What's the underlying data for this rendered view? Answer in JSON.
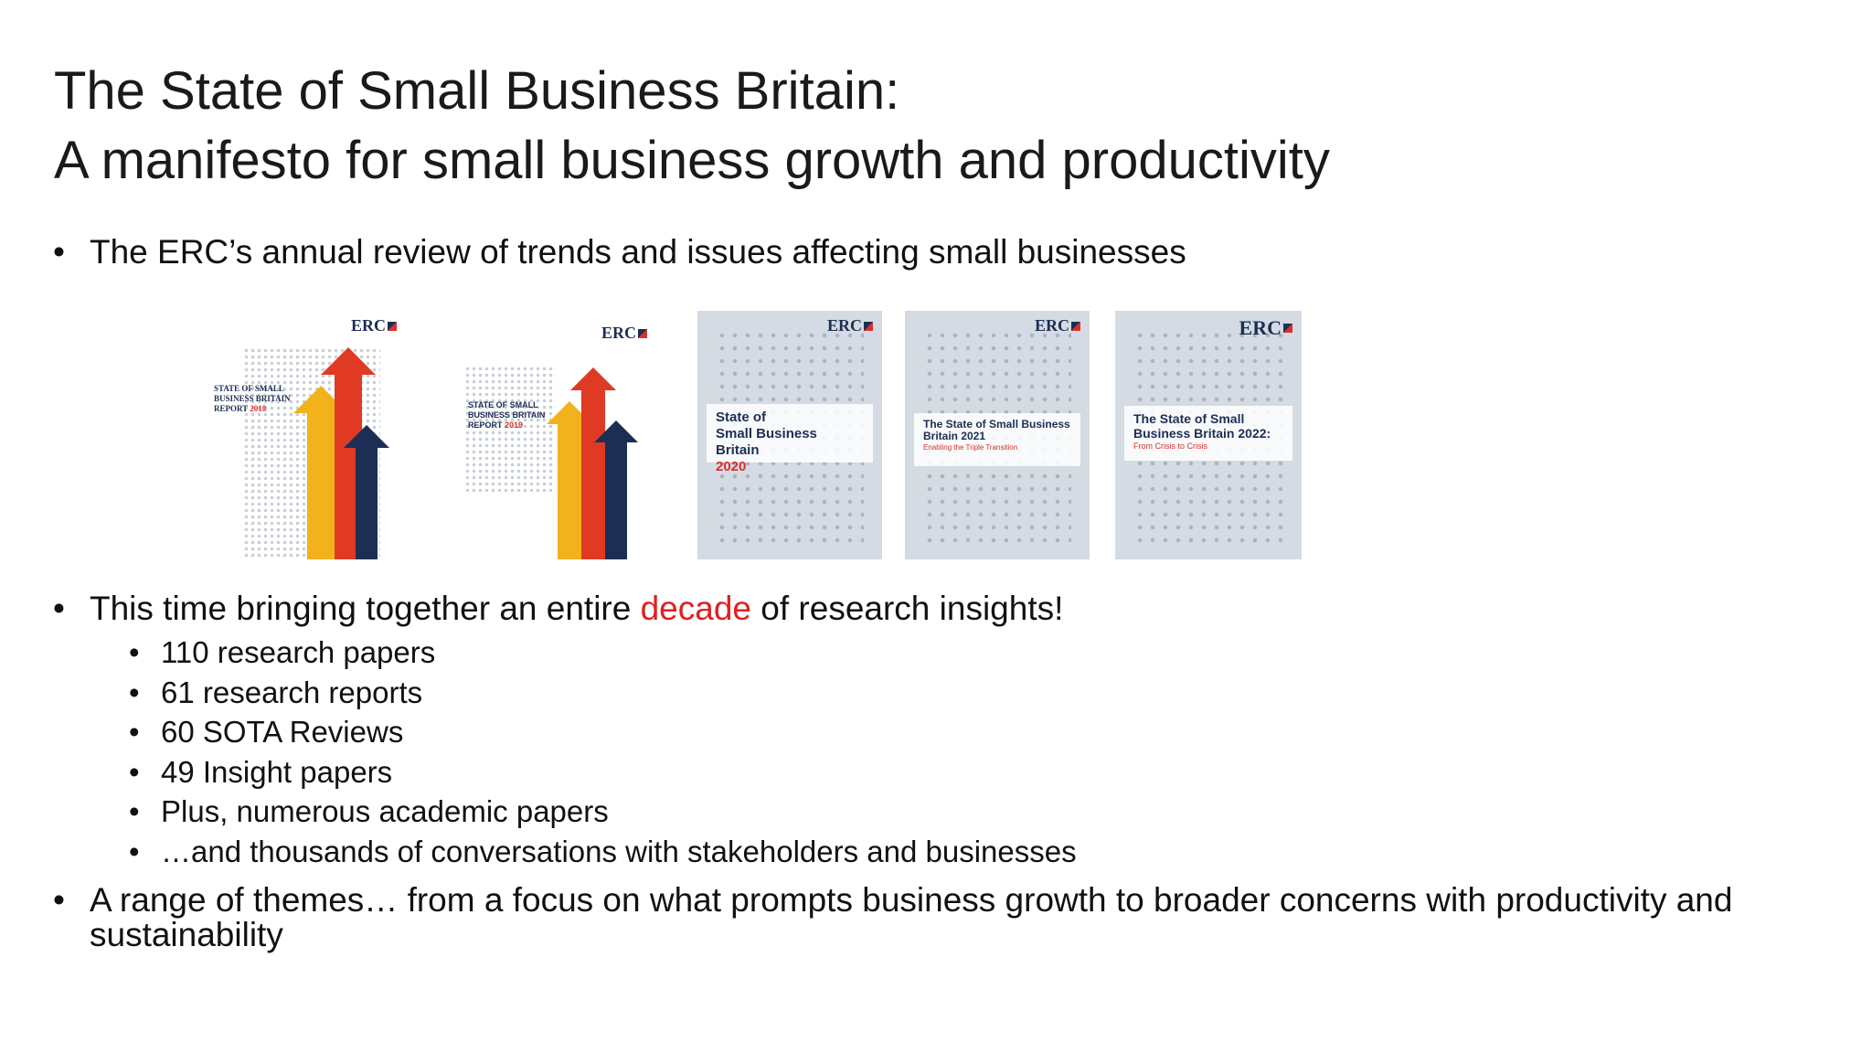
{
  "title": {
    "line1": "The State of Small Business Britain:",
    "line2": "A manifesto for small business growth and productivity"
  },
  "bullets": {
    "intro": "The ERC’s annual review of trends and issues affecting small businesses",
    "decade_pre": "This time bringing together an entire ",
    "decade_word": "decade",
    "decade_post": " of research insights!",
    "sub_items": [
      "110 research papers",
      "61 research reports",
      "60 SOTA Reviews",
      "49 Insight papers",
      "Plus, numerous academic papers",
      "…and thousands of conversations with stakeholders and businesses"
    ],
    "themes": "A range of themes… from a focus on what prompts business growth to broader concerns with productivity and sustainability"
  },
  "covers": [
    {
      "logo": "ERC",
      "title_lines": [
        "STATE OF SMALL",
        "BUSINESS BRITAIN",
        "REPORT"
      ],
      "year": "2018"
    },
    {
      "logo": "ERC",
      "title_lines": [
        "STATE OF SMALL",
        "BUSINESS BRITAIN",
        "REPORT"
      ],
      "year": "2019"
    },
    {
      "logo": "ERC",
      "title_line1": "State of",
      "title_line2": "Small Business Britain",
      "year": "2020"
    },
    {
      "logo": "ERC",
      "title_line1": "The State of Small Business",
      "title_line2": "Britain 2021",
      "subtitle": "Enabling the Triple Transition"
    },
    {
      "logo": "ERC",
      "title_line1": "The State of Small",
      "title_line2": "Business Britain 2022:",
      "subtitle": "From Crisis to Crisis"
    }
  ],
  "colors": {
    "accent_red": "#e02020",
    "navy": "#1d2e55",
    "arrow_yellow": "#f2b21c",
    "arrow_red": "#e03a24",
    "cover_grey": "#d4dbe2"
  }
}
